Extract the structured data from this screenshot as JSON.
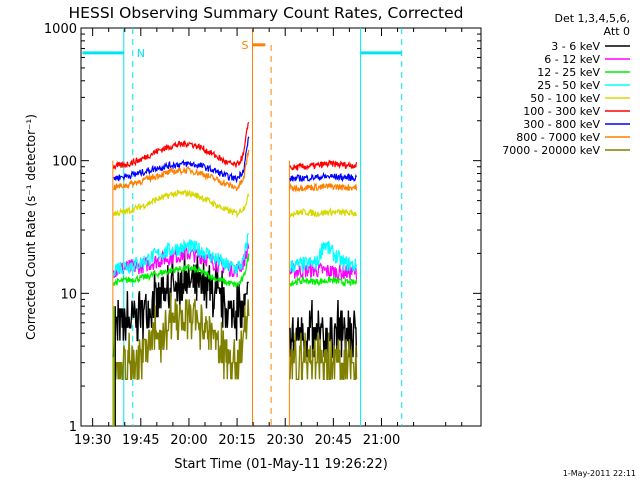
{
  "chart_data": {
    "type": "line",
    "title": "HESSI Observing Summary Count Rates, Corrected",
    "xlabel": "Start Time (01-May-11 19:26:22)",
    "ylabel": "Corrected Count Rate (s⁻¹ detector⁻¹)",
    "x_unit": "minutes of day (UT)",
    "x_range": [
      1166.37,
      1291.0
    ],
    "x_ticks": [
      {
        "value": 1170,
        "label": "19:30"
      },
      {
        "value": 1185,
        "label": "19:45"
      },
      {
        "value": 1200,
        "label": "20:00"
      },
      {
        "value": 1215,
        "label": "20:15"
      },
      {
        "value": 1230,
        "label": "20:30"
      },
      {
        "value": 1245,
        "label": "20:45"
      },
      {
        "value": 1260,
        "label": "21:00"
      }
    ],
    "y_scale": "log",
    "ylim": [
      1,
      1000
    ],
    "y_ticks": [
      {
        "value": 1,
        "label": "1"
      },
      {
        "value": 10,
        "label": "10"
      },
      {
        "value": 100,
        "label": "100"
      },
      {
        "value": 1000,
        "label": "1000"
      }
    ],
    "legend_header": [
      "Det 1,3,4,5,6,",
      "Att 0"
    ],
    "legend_placement": "right",
    "footer_date": "1-May-2011 22:11",
    "series": [
      {
        "name": "3 - 6 keV",
        "color": "#000000",
        "segments": [
          {
            "x": [
              1176.5,
              1180,
              1185,
              1190,
              1195,
              1200,
              1204,
              1208,
              1212,
              1215,
              1217,
              1218.8
            ],
            "y": [
              5.2,
              5.8,
              6.8,
              8.5,
              10.5,
              12.0,
              11.0,
              9.0,
              7.2,
              6.5,
              7.5,
              10.0
            ]
          },
          {
            "x": [
              1231.5,
              1236,
              1240,
              1244,
              1248,
              1252.3
            ],
            "y": [
              4.6,
              4.8,
              4.5,
              4.7,
              4.6,
              4.5
            ]
          }
        ]
      },
      {
        "name": "6 - 12 keV",
        "color": "#ff00ff",
        "segments": [
          {
            "x": [
              1176.5,
              1180,
              1185,
              1190,
              1195,
              1200,
              1204,
              1208,
              1212,
              1215,
              1217,
              1218.8
            ],
            "y": [
              15,
              15.5,
              16,
              17.5,
              19,
              20,
              19,
              17,
              15.5,
              15,
              17,
              24
            ]
          },
          {
            "x": [
              1231.5,
              1236,
              1240,
              1244,
              1248,
              1252.3
            ],
            "y": [
              14.5,
              14.8,
              15,
              14.6,
              14.3,
              14.5
            ]
          }
        ]
      },
      {
        "name": "12 - 25 keV",
        "color": "#00ee00",
        "segments": [
          {
            "x": [
              1176.5,
              1180,
              1185,
              1190,
              1195,
              1200,
              1204,
              1208,
              1212,
              1215,
              1217,
              1218.8
            ],
            "y": [
              12,
              12.5,
              13,
              14,
              15,
              15.5,
              14.5,
              13,
              12,
              11.5,
              13,
              20
            ]
          },
          {
            "x": [
              1231.5,
              1236,
              1240,
              1244,
              1248,
              1252.3
            ],
            "y": [
              12,
              12.5,
              12.2,
              12.6,
              12.1,
              12
            ]
          }
        ]
      },
      {
        "name": "25 - 50 keV",
        "color": "#00ffff",
        "segments": [
          {
            "x": [
              1176.5,
              1180,
              1185,
              1190,
              1195,
              1200,
              1204,
              1208,
              1212,
              1215,
              1217,
              1218.8
            ],
            "y": [
              15.5,
              16,
              17,
              19.5,
              21.5,
              22.5,
              21,
              18.5,
              16,
              15.5,
              17,
              30
            ]
          },
          {
            "x": [
              1231.5,
              1236,
              1240,
              1242,
              1244,
              1248,
              1252.3
            ],
            "y": [
              16,
              16.5,
              17,
              24,
              21,
              17,
              16
            ]
          }
        ]
      },
      {
        "name": "50 - 100 keV",
        "color": "#d8d800",
        "segments": [
          {
            "x": [
              1176.5,
              1180,
              1185,
              1190,
              1195,
              1200,
              1204,
              1208,
              1212,
              1215,
              1217,
              1218.8
            ],
            "y": [
              40,
              41,
              45,
              51,
              56,
              57,
              53,
              47,
              42,
              40,
              44,
              55
            ]
          },
          {
            "x": [
              1231.5,
              1236,
              1240,
              1244,
              1248,
              1252.3
            ],
            "y": [
              40,
              41,
              40,
              41,
              40.5,
              40
            ]
          }
        ]
      },
      {
        "name": "100 - 300 keV",
        "color": "#ff0000",
        "segments": [
          {
            "x": [
              1176.5,
              1180,
              1185,
              1190,
              1195,
              1200,
              1204,
              1208,
              1212,
              1215,
              1217,
              1218.8
            ],
            "y": [
              90,
              93,
              102,
              118,
              130,
              135,
              125,
              110,
              96,
              92,
              110,
              220
            ]
          },
          {
            "x": [
              1231.5,
              1236,
              1240,
              1244,
              1248,
              1252.3
            ],
            "y": [
              88,
              90,
              92,
              95,
              93,
              92
            ]
          }
        ]
      },
      {
        "name": "300 - 800 keV",
        "color": "#0000ff",
        "segments": [
          {
            "x": [
              1176.5,
              1180,
              1185,
              1190,
              1195,
              1200,
              1204,
              1208,
              1212,
              1215,
              1217,
              1218.8
            ],
            "y": [
              74,
              76,
              81,
              88,
              93,
              95,
              91,
              84,
              76,
              73,
              85,
              160
            ]
          },
          {
            "x": [
              1231.5,
              1236,
              1240,
              1244,
              1248,
              1252.3
            ],
            "y": [
              73,
              74,
              75,
              76,
              75,
              74
            ]
          }
        ]
      },
      {
        "name": "800 - 7000 keV",
        "color": "#ff8000",
        "segments": [
          {
            "x": [
              1176.5,
              1180,
              1185,
              1190,
              1195,
              1200,
              1204,
              1208,
              1212,
              1215,
              1217,
              1218.8
            ],
            "y": [
              63,
              65,
              70,
              77,
              83,
              85,
              80,
              73,
              66,
              62,
              72,
              130
            ]
          },
          {
            "x": [
              1231.5,
              1236,
              1240,
              1244,
              1248,
              1252.3
            ],
            "y": [
              62,
              63,
              63,
              64,
              63,
              63
            ]
          }
        ]
      },
      {
        "name": "7000 - 20000 keV",
        "color": "#808000",
        "segments": [
          {
            "x": [
              1176.5,
              1180,
              1185,
              1190,
              1195,
              1200,
              1204,
              1208,
              1212,
              1215,
              1217,
              1218.8
            ],
            "y": [
              2.3,
              2.6,
              3.2,
              4.5,
              6.0,
              6.5,
              5.5,
              4.2,
              3.1,
              3.0,
              4.0,
              7.5
            ]
          },
          {
            "x": [
              1231.5,
              1236,
              1240,
              1244,
              1248,
              1252.3
            ],
            "y": [
              2.8,
              3.0,
              3.2,
              3.0,
              3.1,
              2.9
            ]
          }
        ]
      }
    ],
    "annotations": {
      "night_bars": {
        "color": "#00e5ee",
        "level": 650,
        "label": "N",
        "bars": [
          {
            "x0": 1166.8,
            "x1": 1179.7
          },
          {
            "x0": 1253.5,
            "x1": 1266.3
          }
        ],
        "solid_lines": [
          1179.7,
          1253.5
        ],
        "dashed_lines": [
          1182.5,
          1266.3
        ]
      },
      "saa_bars": {
        "color": "#ff8000",
        "level": 650,
        "label": "S",
        "bars": [
          {
            "x0": 1219.8,
            "x1": 1223.8
          }
        ],
        "solid_lines": [
          1219.8
        ],
        "dashed_lines": [
          1225.6
        ],
        "solid_full_lines": [
          1176.3,
          1231.3
        ]
      }
    }
  }
}
